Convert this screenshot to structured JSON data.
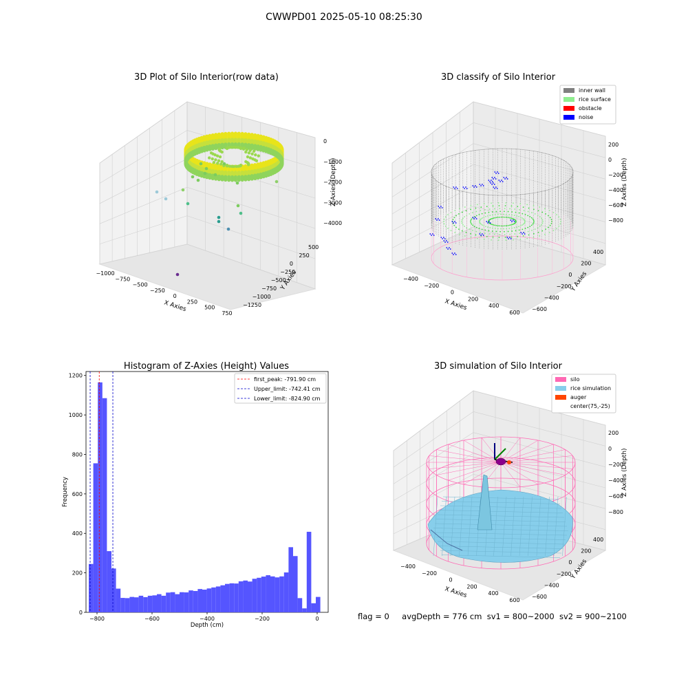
{
  "figure": {
    "title": "CWWPD01 2025-05-10 08:25:30"
  },
  "status": {
    "flag": "flag = 0",
    "avg_depth": "avgDepth = 776 cm",
    "sv1": "sv1 = 800~2000",
    "sv2": "sv2 = 900~2100"
  },
  "colors": {
    "histogram_bar": "#5555ff",
    "first_peak": "#ff0000",
    "limits": "#0000cc",
    "inner_wall": "#808080",
    "rice_surface": "#90ee90",
    "obstacle": "#ff0000",
    "noise": "#0000ff",
    "silo": "#ff69b4",
    "rice_simulation": "#87ceeb",
    "auger": "#ff4500"
  },
  "chart_data": [
    {
      "type": "scatter",
      "projection": "3d",
      "title": "3D Plot of Silo Interior(row data)",
      "xlabel": "X Axies",
      "ylabel": "Y Axies",
      "zlabel": "Z Axies (Depth)",
      "x_ticks": [
        "−1000",
        "−750",
        "−500",
        "−250",
        "0",
        "250",
        "500",
        "750"
      ],
      "y_ticks": [
        "−1250",
        "−1000",
        "−750",
        "−500",
        "−250",
        "0",
        "250",
        "500"
      ],
      "z_ticks": [
        "0",
        "−1000",
        "−2000",
        "−3000",
        "−4000"
      ],
      "xlim": [
        -1000,
        750
      ],
      "ylim": [
        -1250,
        500
      ],
      "zlim": [
        -4500,
        0
      ],
      "colormap": "viridis",
      "description_points": "ring of points near z 0 to −1000 plus scattered outliers"
    },
    {
      "type": "scatter",
      "projection": "3d",
      "title": "3D classify of Silo Interior",
      "xlabel": "X Axies",
      "ylabel": "Y Axies",
      "zlabel": "Z Axies (Depth)",
      "x_ticks": [
        "−400",
        "−200",
        "0",
        "200",
        "400",
        "600"
      ],
      "y_ticks": [
        "−600",
        "−400",
        "−200",
        "0",
        "200",
        "400"
      ],
      "z_ticks": [
        "200",
        "0",
        "−200",
        "−400",
        "−600",
        "−800"
      ],
      "legend": [
        "inner wall",
        "rice surface",
        "obstacle",
        "noise"
      ],
      "legend_position": "top-right"
    },
    {
      "type": "bar",
      "title": "Histogram of Z-Axies (Height) Values",
      "xlabel": "Depth (cm)",
      "ylabel": "Frequency",
      "xlim": [
        -840,
        40
      ],
      "ylim": [
        0,
        1220
      ],
      "x_ticks": [
        -800,
        -600,
        -400,
        -200,
        0
      ],
      "y_ticks": [
        0,
        200,
        400,
        600,
        800,
        1000,
        1200
      ],
      "bin_width": 16.5,
      "bin_start": -830,
      "values": [
        245,
        755,
        1165,
        1085,
        310,
        222,
        120,
        73,
        72,
        78,
        76,
        84,
        77,
        84,
        86,
        92,
        84,
        100,
        102,
        92,
        102,
        101,
        111,
        108,
        118,
        115,
        121,
        126,
        131,
        137,
        144,
        147,
        146,
        157,
        161,
        156,
        170,
        175,
        181,
        188,
        182,
        177,
        182,
        202,
        330,
        285,
        72,
        20,
        408,
        46,
        78
      ],
      "vlines": [
        {
          "label": "first_peak: -791.90 cm",
          "x": -791.9,
          "color": "red"
        },
        {
          "label": "Upper_limit: -742.41 cm",
          "x": -742.41,
          "color": "blue"
        },
        {
          "label": "Lower_limit: -824.90 cm",
          "x": -824.9,
          "color": "blue"
        }
      ],
      "legend_position": "top-right"
    },
    {
      "type": "surface",
      "projection": "3d",
      "title": "3D simulation of Silo Interior",
      "xlabel": "X Axies",
      "ylabel": "Y Axies",
      "zlabel": "Z Axies (Depth)",
      "x_ticks": [
        "−400",
        "−200",
        "0",
        "200",
        "400",
        "600"
      ],
      "y_ticks": [
        "−600",
        "−400",
        "−200",
        "0",
        "200",
        "400"
      ],
      "z_ticks": [
        "200",
        "0",
        "−200",
        "−400",
        "−600",
        "−800"
      ],
      "legend": [
        "silo",
        "rice simulation",
        "auger",
        "center(75,-25)"
      ],
      "legend_position": "top-right"
    }
  ]
}
